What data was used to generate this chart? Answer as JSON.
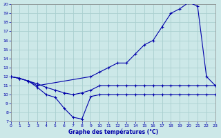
{
  "title": "Graphe des températures (°C)",
  "background_color": "#cce8e8",
  "grid_color": "#aad0d0",
  "line_color": "#0000aa",
  "xlim": [
    0,
    23
  ],
  "ylim": [
    7,
    20
  ],
  "yticks": [
    7,
    8,
    9,
    10,
    11,
    12,
    13,
    14,
    15,
    16,
    17,
    18,
    19,
    20
  ],
  "xticks": [
    0,
    1,
    2,
    3,
    4,
    5,
    6,
    7,
    8,
    9,
    10,
    11,
    12,
    13,
    14,
    15,
    16,
    17,
    18,
    19,
    20,
    21,
    22,
    23
  ],
  "line1_x": [
    0,
    1,
    2,
    3,
    4,
    5,
    6,
    7,
    8,
    9,
    10,
    11,
    12,
    13,
    14,
    15,
    16,
    17,
    18,
    19,
    20,
    21,
    22,
    23
  ],
  "line1_y": [
    12,
    11.8,
    11.5,
    11.2,
    10.8,
    10.5,
    10.2,
    10.0,
    10.2,
    10.5,
    11.0,
    11.0,
    11.0,
    11.0,
    11.0,
    11.0,
    11.0,
    11.0,
    11.0,
    11.0,
    11.0,
    11.0,
    11.0,
    11.0
  ],
  "line2_x": [
    0,
    1,
    2,
    3,
    9,
    10,
    11,
    12,
    13,
    14,
    15,
    16,
    17,
    18,
    19,
    20,
    21,
    22,
    23
  ],
  "line2_y": [
    12,
    11.8,
    11.5,
    11.0,
    12.0,
    12.5,
    13.0,
    13.5,
    13.5,
    14.5,
    15.5,
    16.0,
    17.5,
    19.0,
    19.5,
    20.2,
    19.8,
    12.0,
    11.0
  ],
  "line3_x": [
    0,
    1,
    2,
    3,
    4,
    5,
    6,
    7,
    8,
    9,
    10,
    11,
    12,
    13,
    14,
    15,
    16,
    17,
    18,
    19,
    20,
    21,
    22,
    23
  ],
  "line3_y": [
    12,
    11.8,
    11.5,
    10.8,
    10.0,
    9.7,
    8.5,
    7.5,
    7.3,
    9.8,
    10.0,
    10.0,
    10.0,
    10.0,
    10.0,
    10.0,
    10.0,
    10.0,
    10.0,
    10.0,
    10.0,
    10.0,
    10.0,
    10.0
  ]
}
